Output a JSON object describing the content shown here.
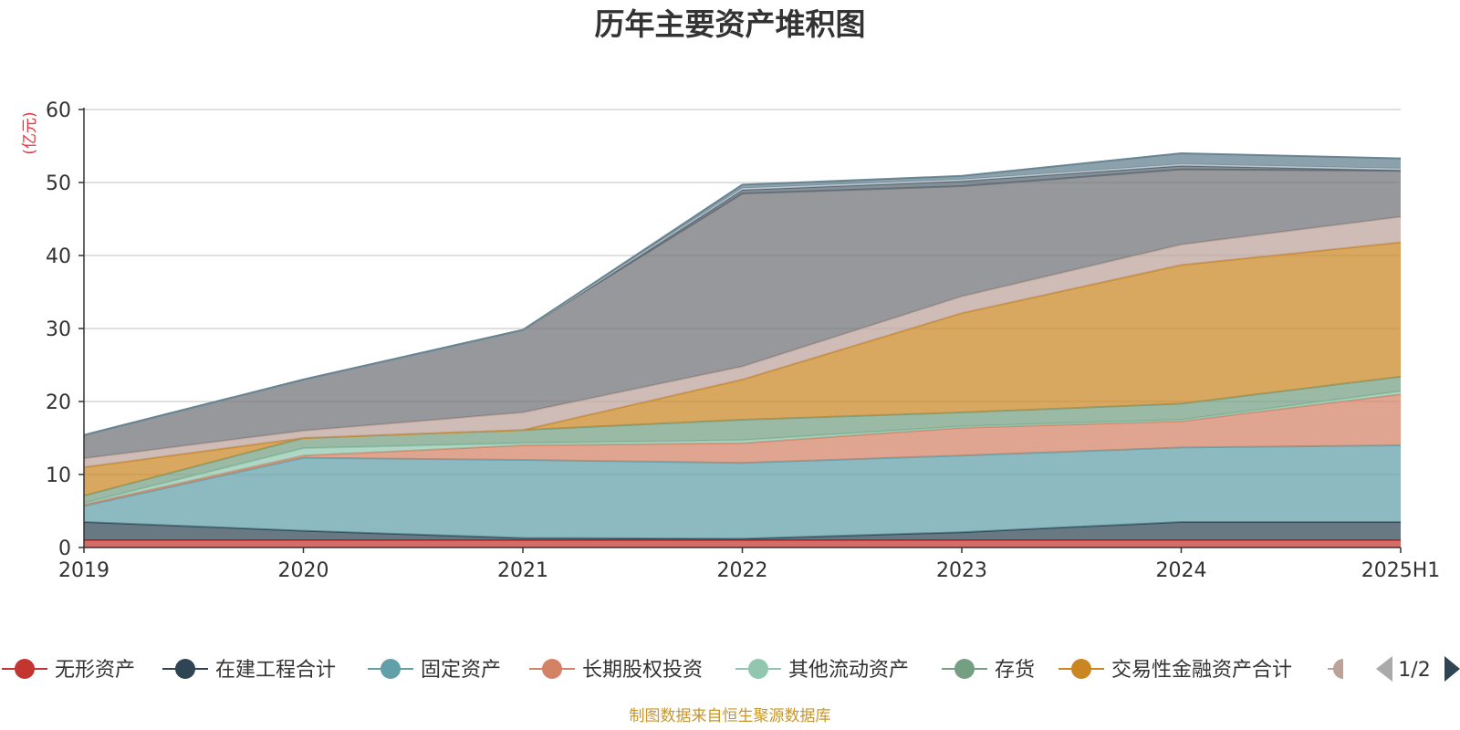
{
  "chart_data": {
    "type": "area",
    "stacked": true,
    "title": "历年主要资产堆积图",
    "ylabel": "(亿元)",
    "xlabel": "",
    "categories": [
      "2019",
      "2020",
      "2021",
      "2022",
      "2023",
      "2024",
      "2025H1"
    ],
    "ylim": [
      0,
      60
    ],
    "yticks": [
      0,
      10,
      20,
      30,
      40,
      50,
      60
    ],
    "grid": true,
    "series": [
      {
        "name": "无形资产",
        "color": "#c23531",
        "values": [
          1.0,
          1.0,
          1.0,
          1.0,
          1.0,
          1.0,
          1.0
        ]
      },
      {
        "name": "在建工程合计",
        "color": "#2f4554",
        "values": [
          2.5,
          1.3,
          0.3,
          0.2,
          1.1,
          2.5,
          2.5
        ]
      },
      {
        "name": "固定资产",
        "color": "#61a0a8",
        "values": [
          2.2,
          10.0,
          10.7,
          10.4,
          10.5,
          10.2,
          10.5
        ]
      },
      {
        "name": "长期股权投资",
        "color": "#d48265",
        "values": [
          0.2,
          0.3,
          2.0,
          2.7,
          3.8,
          3.6,
          7.0
        ]
      },
      {
        "name": "其他流动资产",
        "color": "#91c7ae",
        "values": [
          0.2,
          1.0,
          0.3,
          0.4,
          0.2,
          0.2,
          0.4
        ]
      },
      {
        "name": "存货",
        "color": "#749f83",
        "values": [
          1.0,
          1.4,
          1.8,
          2.8,
          1.9,
          2.2,
          2.0
        ]
      },
      {
        "name": "交易性金融资产合计",
        "color": "#ca8622",
        "values": [
          3.9,
          0.0,
          0.0,
          5.5,
          13.6,
          19.0,
          18.4
        ]
      },
      {
        "name": "",
        "color": "#bda29a",
        "values": [
          1.2,
          1.0,
          2.4,
          1.8,
          2.3,
          2.8,
          3.5
        ]
      },
      {
        "name": "",
        "color": "#6e7074",
        "values": [
          3.2,
          7.0,
          11.3,
          23.7,
          15.1,
          10.3,
          6.3
        ]
      },
      {
        "name": "",
        "color": "#546570",
        "values": [
          0.0,
          0.0,
          0.0,
          0.5,
          0.7,
          0.5,
          0.1
        ]
      },
      {
        "name": "",
        "color": "#c4ccd3",
        "values": [
          0.0,
          0.0,
          0.0,
          0.2,
          0.2,
          0.2,
          0.2
        ]
      },
      {
        "name": "",
        "color": "#5e7d8c",
        "values": [
          0.0,
          0.0,
          0.0,
          0.5,
          0.5,
          1.5,
          1.4
        ]
      }
    ]
  },
  "legend": {
    "page": "1/2"
  },
  "source": "制图数据来自恒生聚源数据库"
}
